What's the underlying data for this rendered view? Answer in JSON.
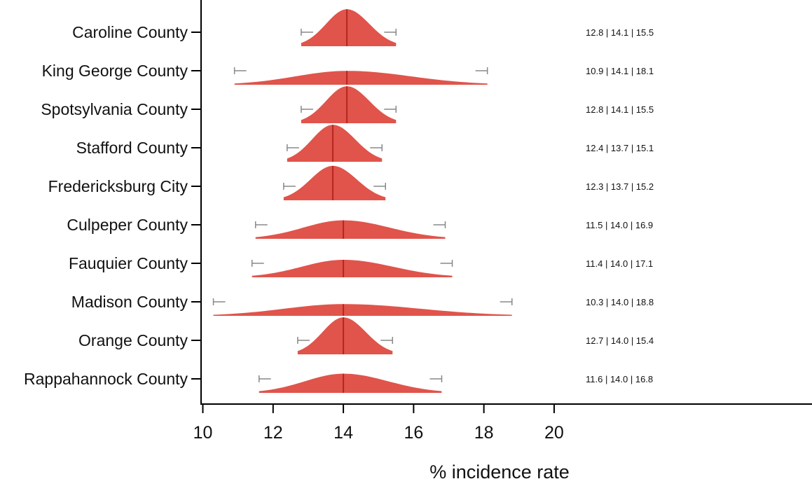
{
  "chart_data": {
    "type": "ridgeline",
    "xlabel": "% incidence rate",
    "xlim": [
      9.95,
      27.4
    ],
    "xticks": [
      10,
      12,
      14,
      16,
      18,
      20
    ],
    "colors": {
      "fill": "#e0544b",
      "median_line": "#b5261e",
      "whisker": "#888888",
      "axis": "#000000"
    },
    "grid": false,
    "rows": [
      {
        "name": "Caroline County",
        "low": 12.8,
        "median": 14.1,
        "high": 15.5,
        "label": "12.8 | 14.1 | 15.5"
      },
      {
        "name": "King George County",
        "low": 10.9,
        "median": 14.1,
        "high": 18.1,
        "label": "10.9 | 14.1 | 18.1"
      },
      {
        "name": "Spotsylvania County",
        "low": 12.8,
        "median": 14.1,
        "high": 15.5,
        "label": "12.8 | 14.1 | 15.5"
      },
      {
        "name": "Stafford County",
        "low": 12.4,
        "median": 13.7,
        "high": 15.1,
        "label": "12.4 | 13.7 | 15.1"
      },
      {
        "name": "Fredericksburg City",
        "low": 12.3,
        "median": 13.7,
        "high": 15.2,
        "label": "12.3 | 13.7 | 15.2"
      },
      {
        "name": "Culpeper County",
        "low": 11.5,
        "median": 14.0,
        "high": 16.9,
        "label": "11.5 | 14.0 | 16.9"
      },
      {
        "name": "Fauquier County",
        "low": 11.4,
        "median": 14.0,
        "high": 17.1,
        "label": "11.4 | 14.0 | 17.1"
      },
      {
        "name": "Madison County",
        "low": 10.3,
        "median": 14.0,
        "high": 18.8,
        "label": "10.3 | 14.0 | 18.8"
      },
      {
        "name": "Orange County",
        "low": 12.7,
        "median": 14.0,
        "high": 15.4,
        "label": "12.7 | 14.0 | 15.4"
      },
      {
        "name": "Rappahannock County",
        "low": 11.6,
        "median": 14.0,
        "high": 16.8,
        "label": "11.6 | 14.0 | 16.8"
      }
    ]
  }
}
